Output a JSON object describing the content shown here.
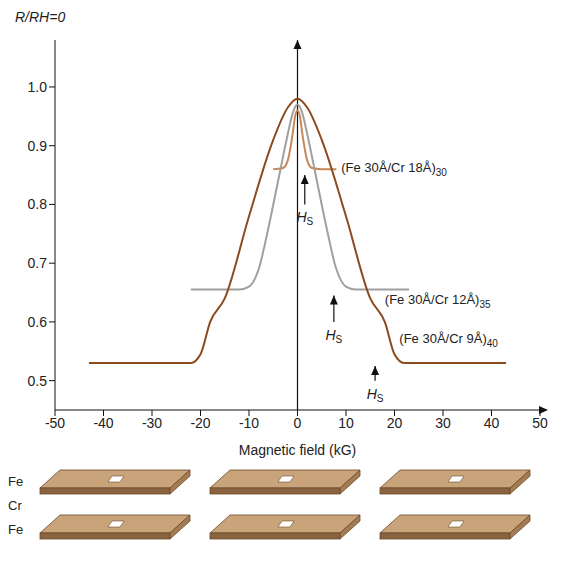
{
  "chart_data": {
    "type": "line",
    "x_label": "Magnetic field (kG)",
    "y_label": "R/RH=0",
    "xlim": [
      -50,
      50
    ],
    "xticks": [
      -50,
      -40,
      -30,
      -20,
      -10,
      0,
      10,
      20,
      30,
      40,
      50
    ],
    "ylim": [
      0.45,
      1.08
    ],
    "yticks": [
      0.5,
      0.6,
      0.7,
      0.8,
      0.9,
      {
        "value": 1,
        "label": "1.0"
      }
    ],
    "grid": false,
    "series": [
      {
        "name": "(Fe 30Å/Cr 18Å)30",
        "color": "#c8875a",
        "label_at": [
          9,
          0.86
        ],
        "x": [
          -5,
          -3,
          -2,
          -1,
          -0.5,
          0,
          0.5,
          1,
          2,
          3,
          5,
          8
        ],
        "values": [
          0.86,
          0.862,
          0.875,
          0.92,
          0.95,
          0.96,
          0.95,
          0.92,
          0.875,
          0.862,
          0.86,
          0.86
        ]
      },
      {
        "name": "(Fe 30Å/Cr 12Å)35",
        "color": "#a0a0a0",
        "label_at": [
          18,
          0.635
        ],
        "x": [
          -22,
          -12,
          -10,
          -8,
          -6,
          -4,
          -2,
          -1,
          0,
          1,
          2,
          4,
          6,
          8,
          10,
          12,
          23
        ],
        "values": [
          0.655,
          0.655,
          0.66,
          0.69,
          0.76,
          0.84,
          0.92,
          0.955,
          0.97,
          0.955,
          0.92,
          0.84,
          0.76,
          0.69,
          0.66,
          0.655,
          0.655
        ]
      },
      {
        "name": "(Fe 30Å/Cr 9Å)40",
        "color": "#8c4a1e",
        "label_at": [
          21,
          0.57
        ],
        "x": [
          -43,
          -22,
          -20,
          -18,
          -15,
          -10,
          -5,
          -2,
          0,
          2,
          5,
          10,
          15,
          18,
          20,
          22,
          43
        ],
        "values": [
          0.53,
          0.53,
          0.545,
          0.6,
          0.64,
          0.78,
          0.91,
          0.965,
          0.98,
          0.965,
          0.91,
          0.78,
          0.64,
          0.6,
          0.545,
          0.53,
          0.53
        ]
      }
    ],
    "annotations": [
      {
        "text": "HS",
        "x": 1.5,
        "y": 0.8,
        "y_tip": 0.85
      },
      {
        "text": "HS",
        "x": 7.5,
        "y": 0.6,
        "y_tip": 0.645
      },
      {
        "text": "HS",
        "x": 16,
        "y": 0.5,
        "y_tip": 0.525
      }
    ]
  },
  "diagram": {
    "layer_labels": [
      "Fe",
      "Cr",
      "Fe"
    ]
  }
}
